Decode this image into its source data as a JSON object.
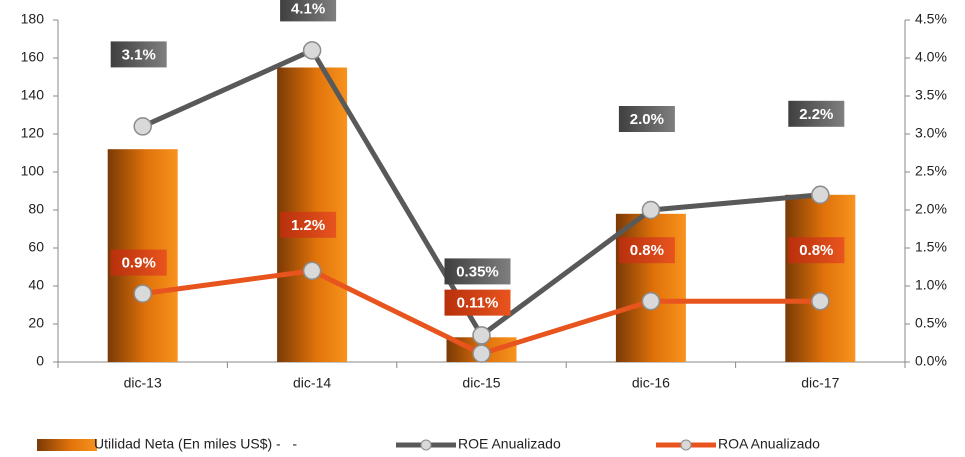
{
  "chart_data": {
    "type": "bar",
    "categories": [
      "dic-13",
      "dic-14",
      "dic-15",
      "dic-16",
      "dic-17"
    ],
    "series": [
      {
        "name": "Utilidad Neta (En miles US$) -   -",
        "color": "#f07f09",
        "values": [
          112,
          155,
          13,
          78,
          88
        ]
      },
      {
        "name": "ROE Anualizado",
        "type": "line",
        "axis": "y2",
        "color": "#595959",
        "values": [
          3.1,
          4.1,
          0.35,
          2.0,
          2.2
        ],
        "value_labels": [
          "3.1%",
          "4.1%",
          "0.35%",
          "2.0%",
          "2.2%"
        ]
      },
      {
        "name": "ROA Anualizado",
        "type": "line",
        "axis": "y2",
        "color": "#e8541e",
        "values": [
          0.9,
          1.2,
          0.11,
          0.8,
          0.8
        ],
        "value_labels": [
          "0.9%",
          "1.2%",
          "0.11%",
          "0.8%",
          "0.8%"
        ]
      }
    ],
    "ylim": [
      0,
      180
    ],
    "yticks": [
      0,
      20,
      40,
      60,
      80,
      100,
      120,
      140,
      160,
      180
    ],
    "y2lim": [
      0,
      4.5
    ],
    "y2ticks": [
      {
        "value": 0,
        "label": "0.0%"
      },
      {
        "value": 0.5,
        "label": "0.5%"
      },
      {
        "value": 1,
        "label": "1.0%"
      },
      {
        "value": 1.5,
        "label": "1.5%"
      },
      {
        "value": 2,
        "label": "2.0%"
      },
      {
        "value": 2.5,
        "label": "2.5%"
      },
      {
        "value": 3,
        "label": "3.0%"
      },
      {
        "value": 3.5,
        "label": "3.5%"
      },
      {
        "value": 4,
        "label": "4.0%"
      },
      {
        "value": 4.5,
        "label": "4.5%"
      }
    ],
    "grid": false,
    "legend": "bottom"
  }
}
